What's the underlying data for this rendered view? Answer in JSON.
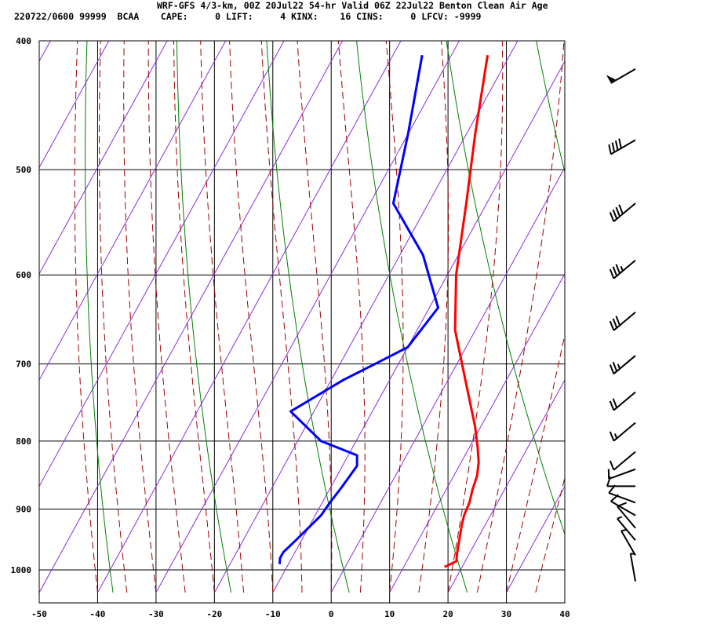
{
  "header": {
    "line1": "WRF-GFS 4/3-km, 00Z 20Jul22 54-hr Valid 06Z 22Jul22 Benton Clean Air Age",
    "line2": "220722/0600 99999  BCAA    CAPE:     0 LIFT:     4 KINX:    16 CINS:     0 LFCV: -9999"
  },
  "chart_data": {
    "type": "line",
    "title": "",
    "xlabel": "",
    "ylabel": "",
    "xlim": [
      -50,
      40
    ],
    "ylim": [
      1030,
      400
    ],
    "y_scale": "log-pressure",
    "x_ticks": [
      -50,
      -40,
      -30,
      -20,
      -10,
      0,
      10,
      20,
      30,
      40
    ],
    "y_ticks": [
      400,
      500,
      600,
      700,
      800,
      900,
      1000
    ],
    "grid": true,
    "colors": {
      "temperature": "#ff0000",
      "dewpoint": "#0000ff",
      "dry_adiabat": "#008000",
      "moist_adiabat": "#a00000",
      "isotherm": "#8a2be2",
      "grid": "#000000"
    },
    "series": [
      {
        "key": "temperature",
        "values": [
          [
            -23.8,
            410
          ],
          [
            -18.5,
            470
          ],
          [
            -13.5,
            530
          ],
          [
            -8.5,
            600
          ],
          [
            -3.5,
            660
          ],
          [
            3.0,
            720
          ],
          [
            9.0,
            780
          ],
          [
            11.5,
            810
          ],
          [
            13.0,
            830
          ],
          [
            14.0,
            850
          ],
          [
            14.5,
            870
          ],
          [
            15.2,
            890
          ],
          [
            15.5,
            910
          ],
          [
            16.0,
            925
          ],
          [
            17.0,
            950
          ],
          [
            18.0,
            975
          ],
          [
            18.5,
            985
          ],
          [
            17.0,
            995
          ]
        ]
      },
      {
        "key": "dewpoint",
        "values": [
          [
            -35.0,
            410
          ],
          [
            -30.0,
            470
          ],
          [
            -26.0,
            530
          ],
          [
            -16.0,
            580
          ],
          [
            -8.5,
            635
          ],
          [
            -10.0,
            680
          ],
          [
            -14.0,
            700
          ],
          [
            -18.0,
            720
          ],
          [
            -24.0,
            760
          ],
          [
            -16.0,
            800
          ],
          [
            -8.5,
            820
          ],
          [
            -7.5,
            835
          ],
          [
            -7.8,
            850
          ],
          [
            -8.2,
            870
          ],
          [
            -8.7,
            890
          ],
          [
            -9.0,
            910
          ],
          [
            -10.0,
            930
          ],
          [
            -11.0,
            950
          ],
          [
            -12.0,
            970
          ],
          [
            -12.0,
            980
          ],
          [
            -11.5,
            990
          ]
        ]
      }
    ],
    "winds": [
      {
        "p": 420,
        "dir": 240,
        "kt": 50
      },
      {
        "p": 475,
        "dir": 240,
        "kt": 40
      },
      {
        "p": 530,
        "dir": 230,
        "kt": 40
      },
      {
        "p": 585,
        "dir": 230,
        "kt": 35
      },
      {
        "p": 640,
        "dir": 230,
        "kt": 30
      },
      {
        "p": 690,
        "dir": 230,
        "kt": 25
      },
      {
        "p": 735,
        "dir": 230,
        "kt": 20
      },
      {
        "p": 775,
        "dir": 230,
        "kt": 15
      },
      {
        "p": 815,
        "dir": 230,
        "kt": 10
      },
      {
        "p": 840,
        "dir": 250,
        "kt": 10
      },
      {
        "p": 865,
        "dir": 270,
        "kt": 10
      },
      {
        "p": 890,
        "dir": 290,
        "kt": 10
      },
      {
        "p": 910,
        "dir": 300,
        "kt": 10
      },
      {
        "p": 930,
        "dir": 320,
        "kt": 10
      },
      {
        "p": 950,
        "dir": 320,
        "kt": 5
      },
      {
        "p": 975,
        "dir": 330,
        "kt": 5
      },
      {
        "p": 1020,
        "dir": 350,
        "kt": 5
      }
    ]
  }
}
